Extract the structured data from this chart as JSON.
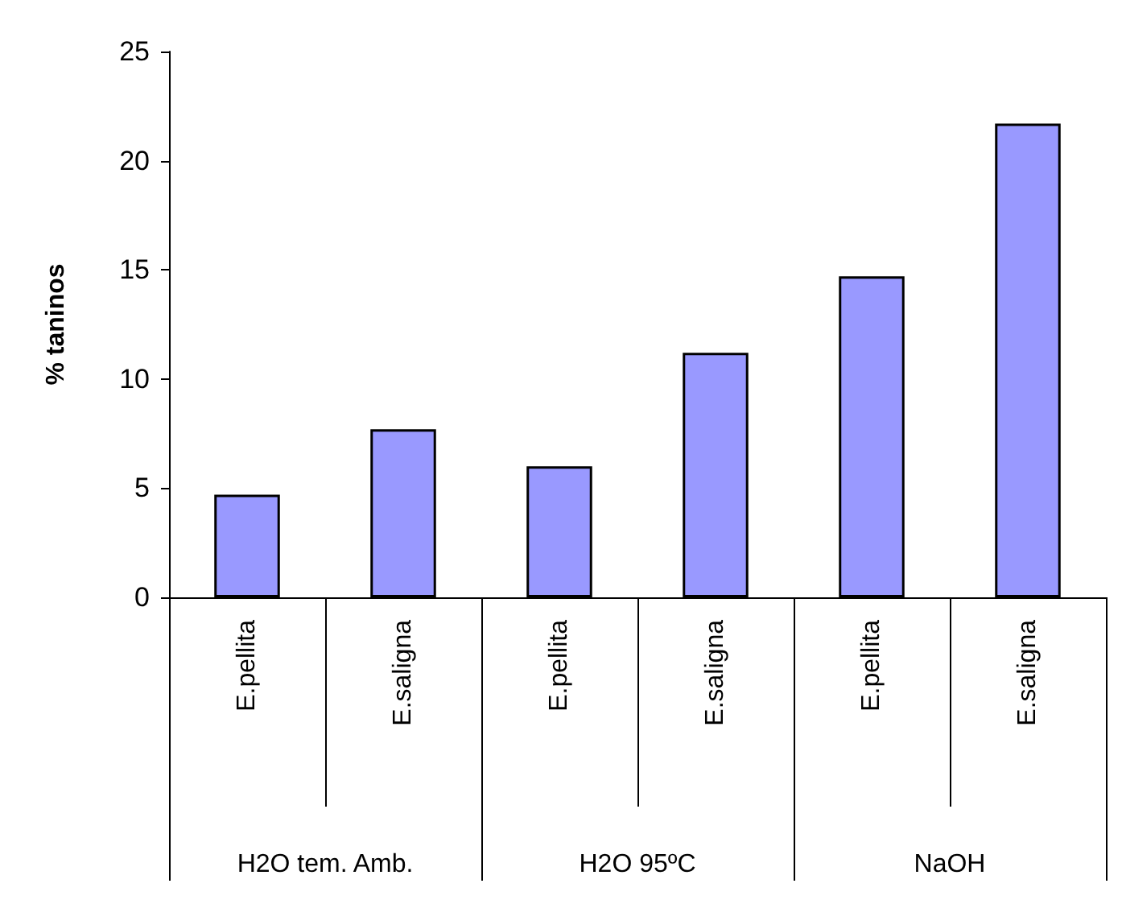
{
  "chart_data": {
    "type": "bar",
    "ylabel": "% taninos",
    "categories": [
      "E.pellita",
      "E.saligna",
      "E.pellita",
      "E.saligna",
      "E.pellita",
      "E.saligna"
    ],
    "values": [
      4.7,
      7.7,
      6.0,
      11.2,
      14.7,
      21.7
    ],
    "color": "#9999ff",
    "ylim": [
      0,
      25
    ],
    "yticks": [
      0,
      5,
      10,
      15,
      20,
      25
    ],
    "annotations": [
      "H2O tem. Amb.",
      "H2O 95ºC",
      "NaOH"
    ]
  }
}
